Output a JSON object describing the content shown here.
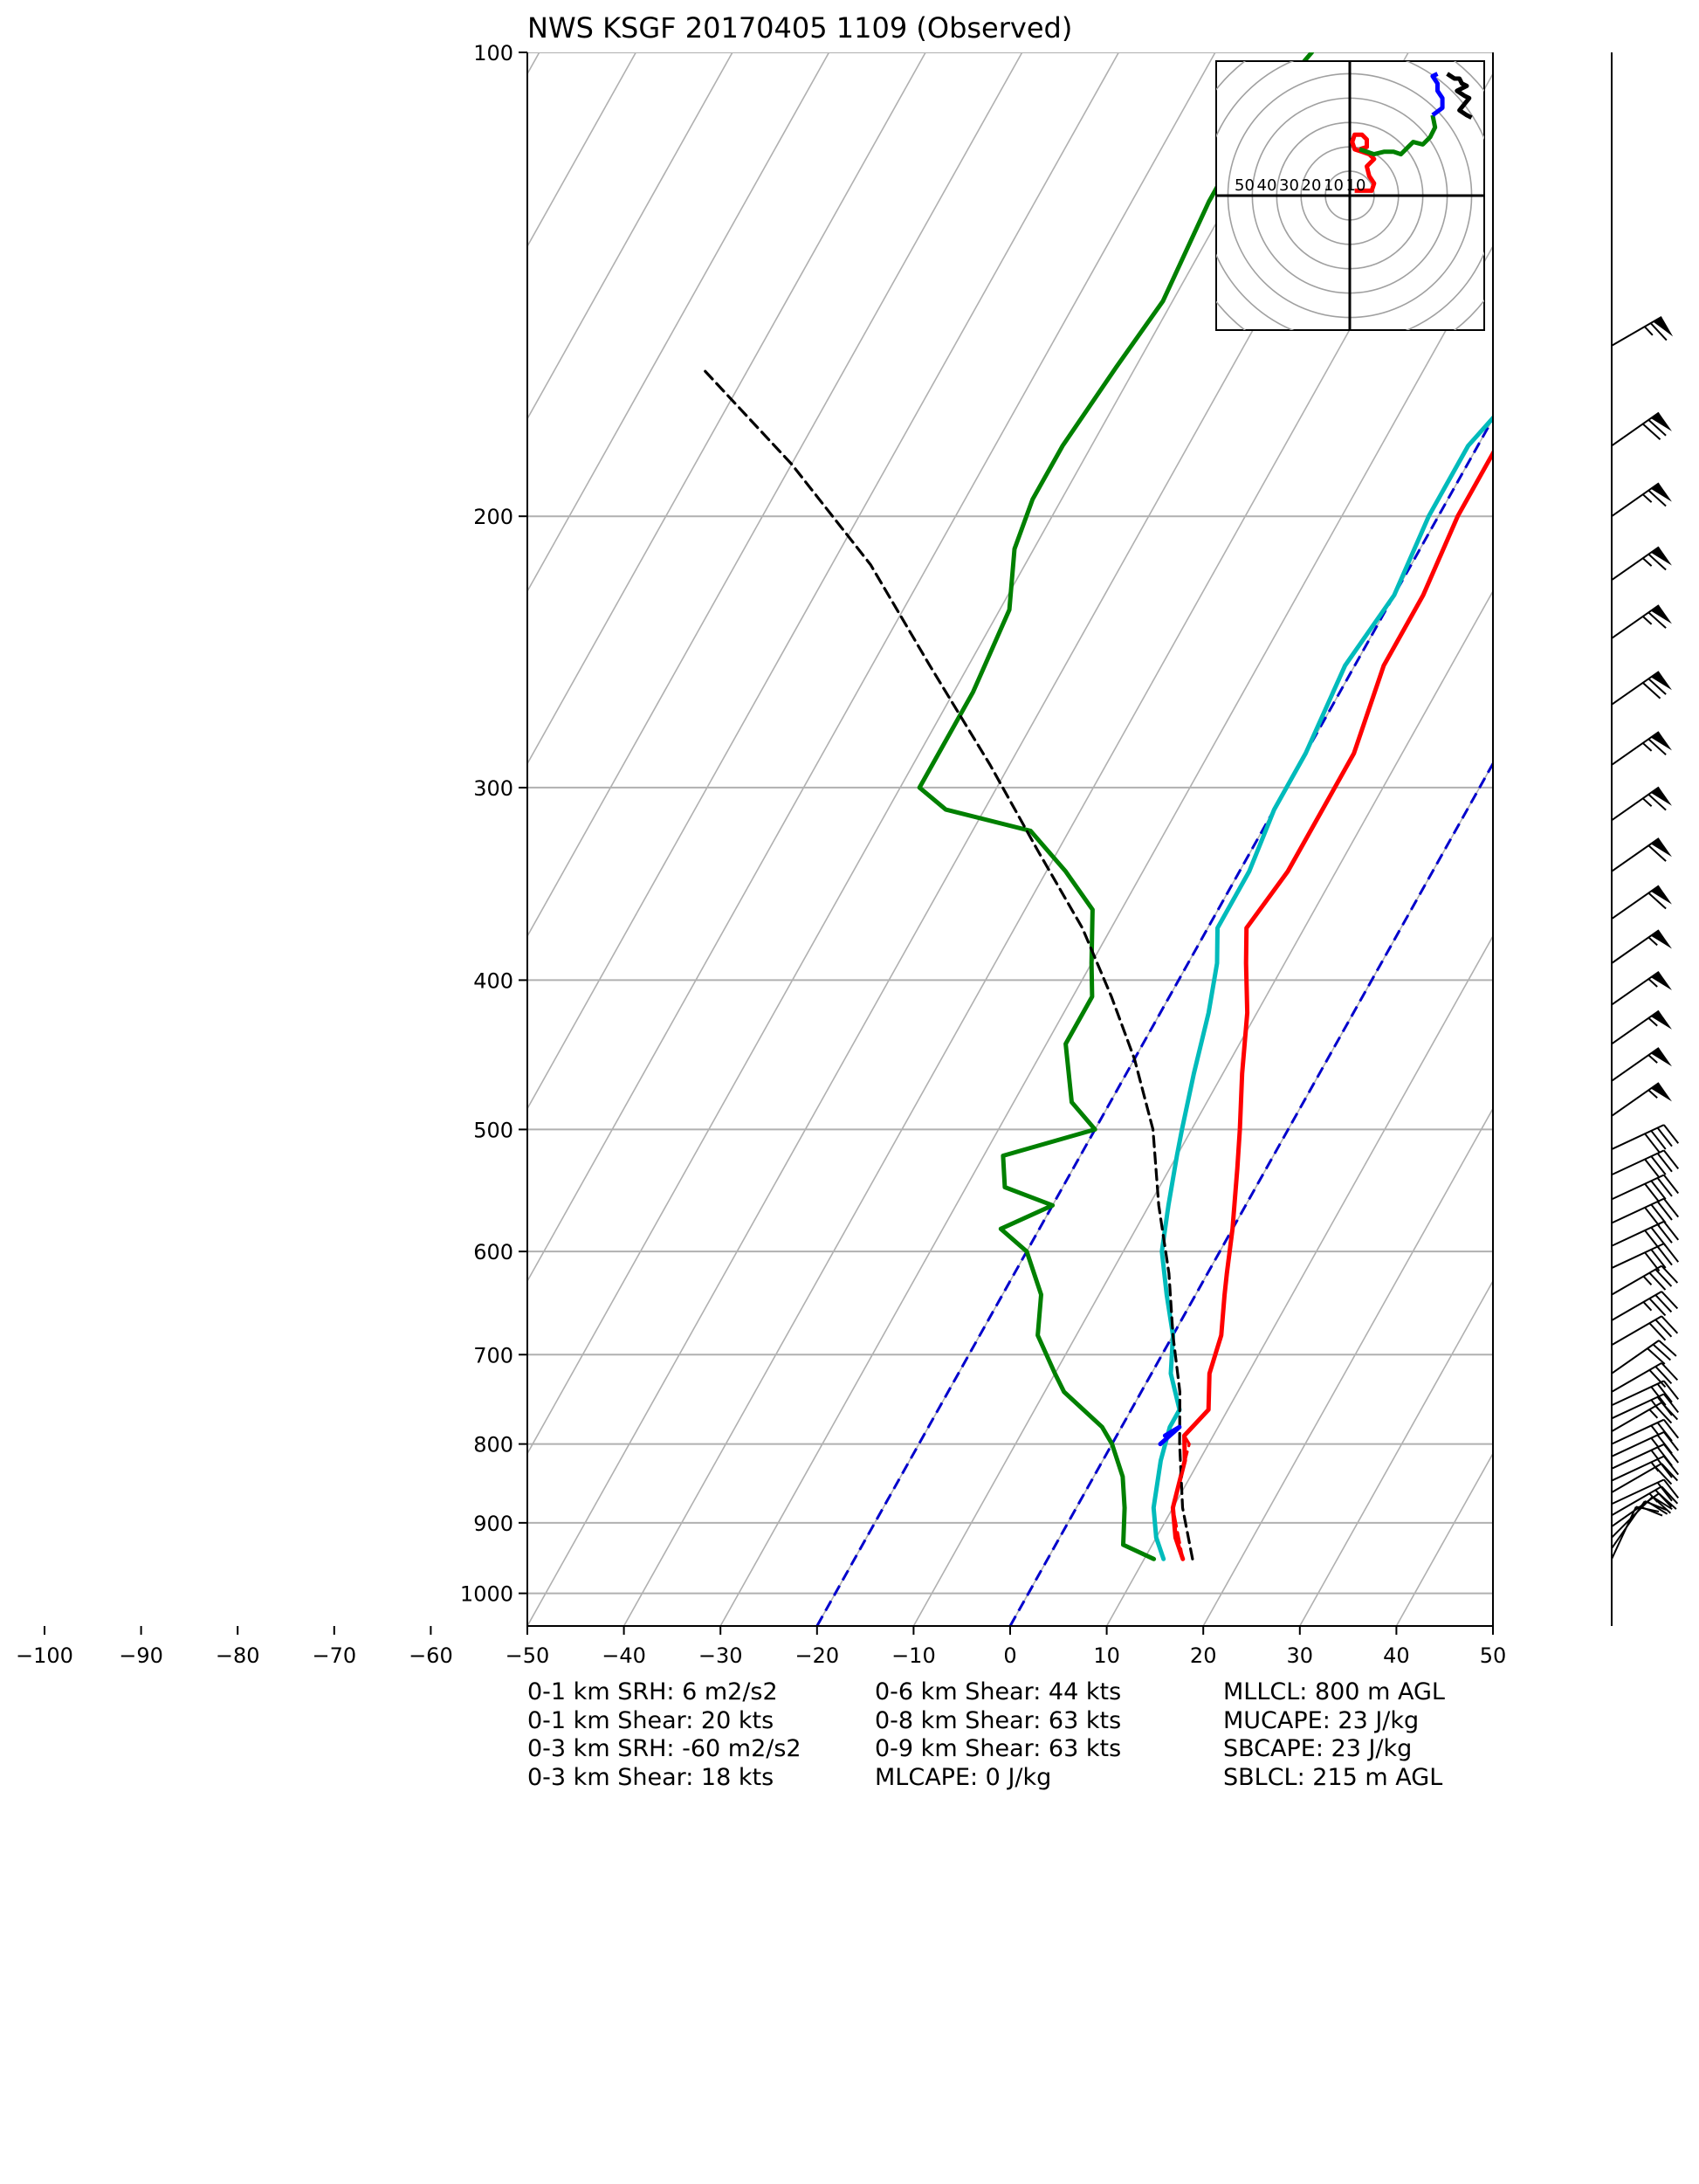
{
  "chart_data": [
    {
      "type": "line",
      "title": "NWS KSGF 20170405 1109   (Observed)",
      "xlabel": "",
      "ylabel": "",
      "x_axis": {
        "ticks": [
          -100,
          -90,
          -80,
          -70,
          -60,
          -50,
          -40,
          -30,
          -20,
          -10,
          0,
          10,
          20,
          30,
          40,
          50
        ],
        "tick_labels": [
          "−100",
          "−90",
          "−80",
          "−70",
          "−60",
          "−50",
          "−40",
          "−30",
          "−20",
          "−10",
          "0",
          "10",
          "20",
          "30",
          "40",
          "50"
        ]
      },
      "y_axis": {
        "scale": "log",
        "range_hpa": [
          1050,
          100
        ],
        "ticks": [
          100,
          200,
          300,
          400,
          500,
          600,
          700,
          800,
          900,
          1000
        ],
        "tick_labels": [
          "100",
          "200",
          "300",
          "400",
          "500",
          "600",
          "700",
          "800",
          "900",
          "1000"
        ]
      },
      "grid": true,
      "skew_isotherm_temps": [
        -140,
        -130,
        -120,
        -110,
        -100,
        -90,
        -80,
        -70,
        -60,
        -50,
        -40,
        -30,
        -20,
        -10,
        0,
        10,
        20,
        30,
        40,
        50
      ],
      "dashed_reference_isotherms": [
        {
          "temp": 0,
          "color": "#0000cc"
        },
        {
          "temp": -20,
          "color": "#0000cc"
        }
      ],
      "series": [
        {
          "color": "#ff0000",
          "points": [
            [
              14,
              950
            ],
            [
              12,
              920
            ],
            [
              10,
              880
            ],
            [
              8.5,
              820
            ],
            [
              7,
              790
            ],
            [
              8,
              760
            ],
            [
              6,
              720
            ],
            [
              5,
              680
            ],
            [
              3,
              640
            ],
            [
              2,
              620
            ],
            [
              0,
              580
            ],
            [
              -3,
              530
            ],
            [
              -5,
              500
            ],
            [
              -8,
              460
            ],
            [
              -11,
              420
            ],
            [
              -14,
              390
            ],
            [
              -16,
              370
            ],
            [
              -15,
              340
            ],
            [
              -15,
              310
            ],
            [
              -15,
              285
            ],
            [
              -17,
              250
            ],
            [
              -17,
              225
            ],
            [
              -18,
              200
            ],
            [
              -18,
              180
            ],
            [
              -17,
              165
            ],
            [
              -14,
              150
            ],
            [
              -12,
              140
            ],
            [
              -12,
              125
            ],
            [
              -10,
              115
            ],
            [
              -8,
              104
            ],
            [
              -7,
              100
            ]
          ]
        },
        {
          "color": "#00bbbb",
          "points": [
            [
              12,
              950
            ],
            [
              10,
              920
            ],
            [
              8,
              880
            ],
            [
              6,
              820
            ],
            [
              5,
              780
            ],
            [
              5,
              760
            ],
            [
              2,
              720
            ],
            [
              0,
              680
            ],
            [
              -3,
              640
            ],
            [
              -6,
              600
            ],
            [
              -8,
              560
            ],
            [
              -10,
              520
            ],
            [
              -11,
              500
            ],
            [
              -13,
              460
            ],
            [
              -15,
              420
            ],
            [
              -17,
              390
            ],
            [
              -19,
              370
            ],
            [
              -19,
              340
            ],
            [
              -20,
              310
            ],
            [
              -20,
              285
            ],
            [
              -21,
              250
            ],
            [
              -20,
              225
            ],
            [
              -21,
              200
            ],
            [
              -21,
              180
            ],
            [
              -19,
              165
            ],
            [
              -16,
              150
            ],
            [
              -14,
              140
            ],
            [
              -13,
              125
            ],
            [
              -13,
              115
            ],
            [
              -10,
              104
            ],
            [
              -9,
              100
            ]
          ]
        },
        {
          "color": "#008000",
          "points": [
            [
              11,
              950
            ],
            [
              7,
              930
            ],
            [
              5,
              880
            ],
            [
              3,
              840
            ],
            [
              0,
              800
            ],
            [
              -2,
              780
            ],
            [
              -8,
              740
            ],
            [
              -10,
              720
            ],
            [
              -14,
              680
            ],
            [
              -16,
              640
            ],
            [
              -20,
              600
            ],
            [
              -24,
              580
            ],
            [
              -20,
              560
            ],
            [
              -26,
              545
            ],
            [
              -28,
              520
            ],
            [
              -20,
              500
            ],
            [
              -24,
              480
            ],
            [
              -28,
              440
            ],
            [
              -28,
              410
            ],
            [
              -30,
              390
            ],
            [
              -33,
              360
            ],
            [
              -38,
              340
            ],
            [
              -44,
              320
            ],
            [
              -54,
              310
            ],
            [
              -58,
              300
            ],
            [
              -58,
              285
            ],
            [
              -58,
              260
            ],
            [
              -59,
              230
            ],
            [
              -62,
              210
            ],
            [
              -63,
              195
            ],
            [
              -63,
              180
            ],
            [
              -62,
              160
            ],
            [
              -61,
              145
            ],
            [
              -62,
              125
            ],
            [
              -62,
              110
            ],
            [
              -60,
              100
            ]
          ]
        },
        {
          "color": "#000000",
          "dashed": true,
          "points": [
            [
              15,
              950
            ],
            [
              11,
              880
            ],
            [
              7,
              800
            ],
            [
              4,
              740
            ],
            [
              0,
              680
            ],
            [
              -4,
              620
            ],
            [
              -9,
              560
            ],
            [
              -14,
              500
            ],
            [
              -20,
              450
            ],
            [
              -26,
              410
            ],
            [
              -33,
              370
            ],
            [
              -42,
              330
            ],
            [
              -52,
              290
            ],
            [
              -64,
              250
            ],
            [
              -76,
              215
            ],
            [
              -90,
              185
            ],
            [
              -105,
              160
            ]
          ]
        },
        {
          "color": "#ff0000",
          "dashed": true,
          "points": [
            [
              14,
              950
            ],
            [
              10,
              880
            ],
            [
              8,
              800
            ],
            [
              7,
              790
            ]
          ]
        },
        {
          "color": "#0000ff",
          "points": [
            [
              5,
              800
            ],
            [
              6,
              780
            ],
            [
              5,
              790
            ]
          ]
        }
      ],
      "wind_barbs": [
        {
          "p": 950,
          "dir": 205,
          "kt": 12
        },
        {
          "p": 935,
          "dir": 215,
          "kt": 18
        },
        {
          "p": 920,
          "dir": 225,
          "kt": 20
        },
        {
          "p": 905,
          "dir": 235,
          "kt": 22
        },
        {
          "p": 890,
          "dir": 240,
          "kt": 24
        },
        {
          "p": 875,
          "dir": 245,
          "kt": 22
        },
        {
          "p": 860,
          "dir": 240,
          "kt": 22
        },
        {
          "p": 845,
          "dir": 245,
          "kt": 24
        },
        {
          "p": 830,
          "dir": 245,
          "kt": 26
        },
        {
          "p": 815,
          "dir": 245,
          "kt": 25
        },
        {
          "p": 800,
          "dir": 245,
          "kt": 25
        },
        {
          "p": 785,
          "dir": 240,
          "kt": 26
        },
        {
          "p": 770,
          "dir": 245,
          "kt": 27
        },
        {
          "p": 755,
          "dir": 245,
          "kt": 28
        },
        {
          "p": 740,
          "dir": 240,
          "kt": 30
        },
        {
          "p": 720,
          "dir": 235,
          "kt": 28
        },
        {
          "p": 690,
          "dir": 240,
          "kt": 30
        },
        {
          "p": 665,
          "dir": 240,
          "kt": 35
        },
        {
          "p": 640,
          "dir": 240,
          "kt": 35
        },
        {
          "p": 615,
          "dir": 245,
          "kt": 40
        },
        {
          "p": 595,
          "dir": 245,
          "kt": 40
        },
        {
          "p": 575,
          "dir": 245,
          "kt": 40
        },
        {
          "p": 555,
          "dir": 245,
          "kt": 42
        },
        {
          "p": 535,
          "dir": 245,
          "kt": 42
        },
        {
          "p": 515,
          "dir": 245,
          "kt": 40
        },
        {
          "p": 490,
          "dir": 235,
          "kt": 55
        },
        {
          "p": 465,
          "dir": 235,
          "kt": 55
        },
        {
          "p": 440,
          "dir": 235,
          "kt": 55
        },
        {
          "p": 415,
          "dir": 235,
          "kt": 55
        },
        {
          "p": 390,
          "dir": 235,
          "kt": 55
        },
        {
          "p": 365,
          "dir": 235,
          "kt": 60
        },
        {
          "p": 340,
          "dir": 235,
          "kt": 60
        },
        {
          "p": 315,
          "dir": 235,
          "kt": 65
        },
        {
          "p": 290,
          "dir": 235,
          "kt": 65
        },
        {
          "p": 265,
          "dir": 235,
          "kt": 70
        },
        {
          "p": 240,
          "dir": 235,
          "kt": 65
        },
        {
          "p": 220,
          "dir": 235,
          "kt": 65
        },
        {
          "p": 200,
          "dir": 235,
          "kt": 65
        },
        {
          "p": 180,
          "dir": 235,
          "kt": 70
        },
        {
          "p": 155,
          "dir": 240,
          "kt": 65
        }
      ]
    },
    {
      "type": "line",
      "title": "",
      "ring_labels": [
        "50",
        "40",
        "30",
        "20",
        "10",
        "10"
      ],
      "ring_speeds": [
        10,
        20,
        30,
        40,
        50,
        60,
        70,
        80
      ],
      "axis_range": [
        -50,
        50
      ],
      "grid": true,
      "series": [
        {
          "color": "#ff0000",
          "points": [
            [
              2,
              2
            ],
            [
              9,
              2
            ],
            [
              10,
              5
            ],
            [
              8,
              8
            ],
            [
              7,
              12
            ],
            [
              10,
              15
            ],
            [
              8,
              17
            ],
            [
              5,
              18
            ],
            [
              2,
              19
            ],
            [
              1,
              22
            ],
            [
              2,
              25
            ],
            [
              5,
              25
            ],
            [
              7,
              23
            ],
            [
              7,
              20
            ],
            [
              4,
              19
            ]
          ]
        },
        {
          "color": "#008000",
          "points": [
            [
              4,
              19
            ],
            [
              10,
              17
            ],
            [
              14,
              18
            ],
            [
              18,
              18
            ],
            [
              21,
              17
            ],
            [
              24,
              20
            ],
            [
              26,
              22
            ],
            [
              30,
              21
            ],
            [
              33,
              24
            ],
            [
              35,
              28
            ],
            [
              34,
              33
            ]
          ]
        },
        {
          "color": "#0000ff",
          "points": [
            [
              34,
              33
            ],
            [
              38,
              36
            ],
            [
              38,
              40
            ],
            [
              36,
              43
            ],
            [
              36,
              46
            ],
            [
              34,
              49
            ],
            [
              36,
              50
            ]
          ]
        },
        {
          "color": "#000000",
          "points": [
            [
              40,
              50
            ],
            [
              43,
              48
            ],
            [
              45,
              48
            ],
            [
              46,
              46
            ],
            [
              48,
              45
            ],
            [
              44,
              43
            ],
            [
              47,
              41
            ],
            [
              49,
              40
            ],
            [
              45,
              35
            ],
            [
              48,
              33
            ],
            [
              50,
              32
            ]
          ]
        }
      ]
    }
  ],
  "stats": {
    "col0": [
      "0-1 km SRH: 6 m2/s2",
      "0-1 km Shear: 20 kts",
      "0-3 km SRH: -60 m2/s2",
      "0-3 km Shear: 18 kts"
    ],
    "col1": [
      "0-6 km Shear: 44 kts",
      "0-8 km Shear: 63 kts",
      "0-9 km Shear: 63 kts",
      "MLCAPE: 0 J/kg"
    ],
    "col2": [
      "MLLCL: 800 m AGL",
      "MUCAPE: 23 J/kg",
      "SBCAPE: 23 J/kg",
      "SBLCL: 215 m AGL"
    ]
  }
}
